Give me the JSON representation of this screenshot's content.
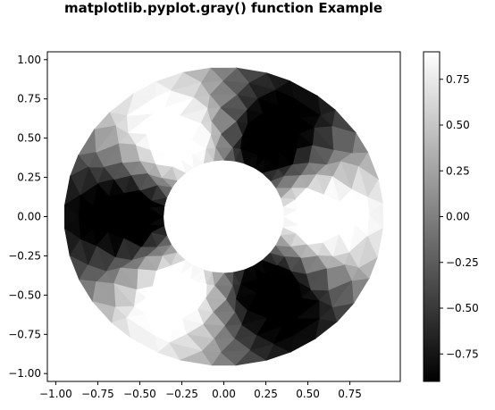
{
  "chart_data": {
    "type": "heatmap",
    "title": "matplotlib.pyplot.gray() function Example",
    "xlabel": "",
    "ylabel": "",
    "colormap": "gray",
    "xlim": [
      -1.05,
      1.05
    ],
    "ylim": [
      -1.05,
      1.05
    ],
    "x_ticks": [
      -1.0,
      -0.75,
      -0.5,
      -0.25,
      0.0,
      0.25,
      0.5,
      0.75
    ],
    "x_tick_labels": [
      "−1.00",
      "−0.75",
      "−0.50",
      "−0.25",
      "0.00",
      "0.25",
      "0.50",
      "0.75"
    ],
    "y_ticks": [
      1.0,
      0.75,
      0.5,
      0.25,
      0.0,
      -0.25,
      -0.5,
      -0.75,
      -1.0
    ],
    "y_tick_labels": [
      "1.00",
      "0.75",
      "0.50",
      "0.25",
      "0.00",
      "−0.25",
      "−0.50",
      "−0.75",
      "−1.00"
    ],
    "colorbar": {
      "vmin": -0.9,
      "vmax": 0.9,
      "ticks": [
        0.75,
        0.5,
        0.25,
        0.0,
        -0.25,
        -0.5,
        -0.75
      ],
      "tick_labels": [
        "0.75",
        "0.50",
        "0.25",
        "0.00",
        "−0.25",
        "−0.50",
        "−0.75"
      ]
    },
    "annulus": {
      "inner_radius": 0.36,
      "outer_radius": 0.95,
      "n_radii": 8,
      "n_angles": 36
    },
    "grid": false
  }
}
